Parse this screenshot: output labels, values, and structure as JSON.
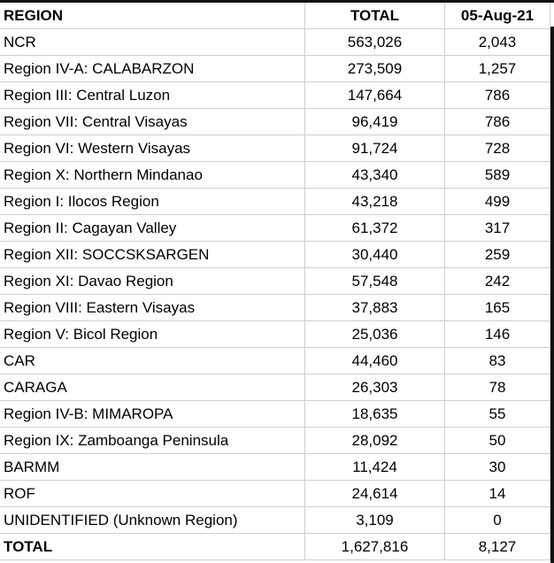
{
  "headers": [
    "REGION",
    "TOTAL",
    "05-Aug-21"
  ],
  "rows": [
    [
      "NCR",
      "563,026",
      "2,043"
    ],
    [
      "Region IV-A: CALABARZON",
      "273,509",
      "1,257"
    ],
    [
      "Region III: Central Luzon",
      "147,664",
      "786"
    ],
    [
      "Region VII: Central Visayas",
      "96,419",
      "786"
    ],
    [
      "Region VI: Western Visayas",
      "91,724",
      "728"
    ],
    [
      "Region X: Northern Mindanao",
      "43,340",
      "589"
    ],
    [
      "Region I: Ilocos Region",
      "43,218",
      "499"
    ],
    [
      "Region II: Cagayan Valley",
      "61,372",
      "317"
    ],
    [
      "Region XII: SOCCSKSARGEN",
      "30,440",
      "259"
    ],
    [
      "Region XI: Davao Region",
      "57,548",
      "242"
    ],
    [
      "Region VIII: Eastern Visayas",
      "37,883",
      "165"
    ],
    [
      "Region V: Bicol Region",
      "25,036",
      "146"
    ],
    [
      "CAR",
      "44,460",
      "83"
    ],
    [
      "CARAGA",
      "26,303",
      "78"
    ],
    [
      "Region IV-B: MIMAROPA",
      "18,635",
      "55"
    ],
    [
      "Region IX: Zamboanga Peninsula",
      "28,092",
      "50"
    ],
    [
      "BARMM",
      "11,424",
      "30"
    ],
    [
      "ROF",
      "24,614",
      "14"
    ],
    [
      "UNIDENTIFIED (Unknown Region)",
      "3,109",
      "0"
    ]
  ],
  "total": [
    "TOTAL",
    "1,627,816",
    "8,127"
  ]
}
